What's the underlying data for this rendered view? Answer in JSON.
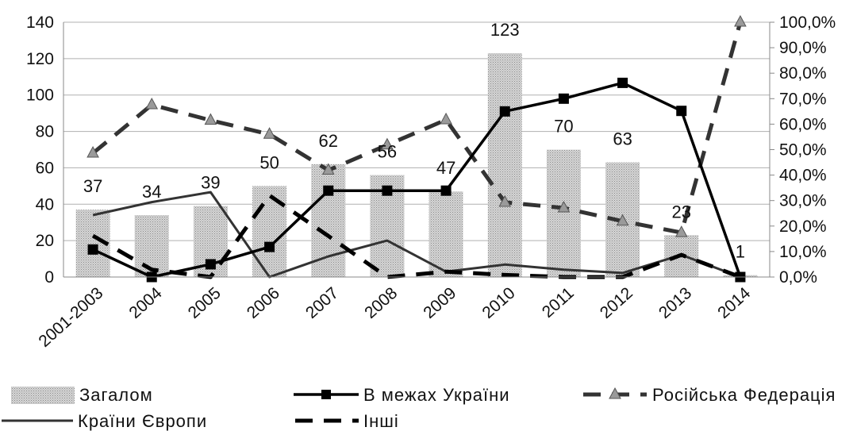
{
  "chart_data": {
    "type": "bar",
    "categories": [
      "2001-2003",
      "2004",
      "2005",
      "2006",
      "2007",
      "2008",
      "2009",
      "2010",
      "2011",
      "2012",
      "2013",
      "2014"
    ],
    "bar_series": {
      "name": "Загалом",
      "values": [
        37,
        34,
        39,
        50,
        62,
        56,
        47,
        123,
        70,
        63,
        23,
        1
      ],
      "data_labels": [
        "37",
        "34",
        "39",
        "50",
        "62",
        "56",
        "47",
        "123",
        "70",
        "63",
        "23",
        "1"
      ],
      "color": "#c8c8c8"
    },
    "line_series": [
      {
        "name": "В межах України",
        "values": [
          10.8,
          0,
          5,
          11.8,
          33.9,
          33.9,
          33.9,
          65,
          70,
          76.2,
          65.2,
          0
        ],
        "style": "solid-square",
        "color": "#000000"
      },
      {
        "name": "Російська Федерація",
        "values": [
          48.6,
          67.6,
          61.5,
          56,
          41.9,
          51.8,
          61.7,
          29.3,
          27.1,
          21.9,
          17.4,
          100
        ],
        "style": "dashed-triangle",
        "color": "#333333"
      },
      {
        "name": "Країни Європи",
        "values": [
          24.3,
          29.4,
          33.3,
          0,
          8.1,
          14.3,
          2.1,
          4.9,
          2.9,
          1.6,
          8.7,
          0
        ],
        "style": "solid-thin",
        "color": "#333333"
      },
      {
        "name": "Інші",
        "values": [
          16.2,
          2.9,
          0,
          32,
          16.1,
          0,
          2.1,
          0.8,
          0,
          0,
          8.7,
          0
        ],
        "style": "dashed",
        "color": "#000000"
      }
    ],
    "y_left": {
      "ylim": [
        0,
        140
      ],
      "ticks": [
        "0",
        "20",
        "40",
        "60",
        "80",
        "100",
        "120",
        "140"
      ]
    },
    "y_right": {
      "ylim": [
        0,
        100
      ],
      "ticks": [
        "0,0%",
        "10,0%",
        "20,0%",
        "30,0%",
        "40,0%",
        "50,0%",
        "60,0%",
        "70,0%",
        "80,0%",
        "90,0%",
        "100,0%"
      ]
    },
    "grid": true,
    "legend": "bottom",
    "title": "",
    "xlabel": "",
    "ylabel": ""
  }
}
